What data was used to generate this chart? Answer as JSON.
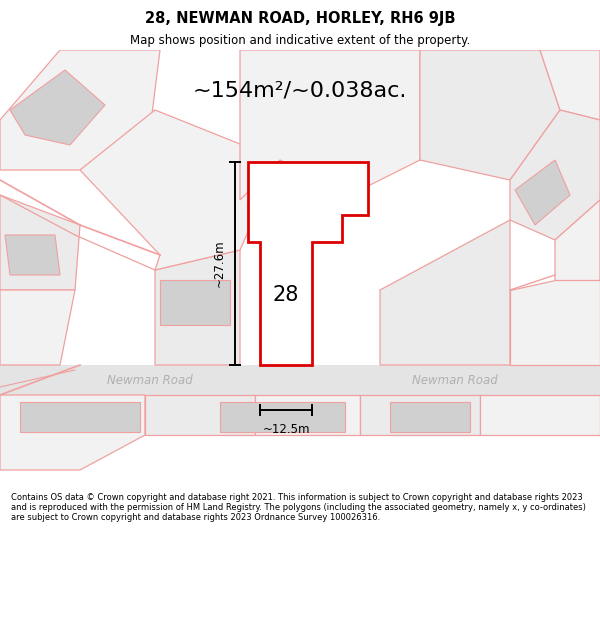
{
  "title": "28, NEWMAN ROAD, HORLEY, RH6 9JB",
  "subtitle": "Map shows position and indicative extent of the property.",
  "area_text": "~154m²/~0.038ac.",
  "label_28": "28",
  "road_label_left": "Newman Road",
  "road_label_right": "Newman Road",
  "dim_width": "~12.5m",
  "dim_height": "~27.6m",
  "footer": "Contains OS data © Crown copyright and database right 2021. This information is subject to Crown copyright and database rights 2023 and is reproduced with the permission of HM Land Registry. The polygons (including the associated geometry, namely x, y co-ordinates) are subject to Crown copyright and database rights 2023 Ordnance Survey 100026316.",
  "bg_color": "#ffffff",
  "outline_color": "#f0a0a0",
  "highlight_color": "#dd0000",
  "gray_fill": "#d0d0d0",
  "road_fill": "#e4e4e4",
  "parcel_fill": "#f2f2f2",
  "parcel_fill2": "#ebebeb"
}
